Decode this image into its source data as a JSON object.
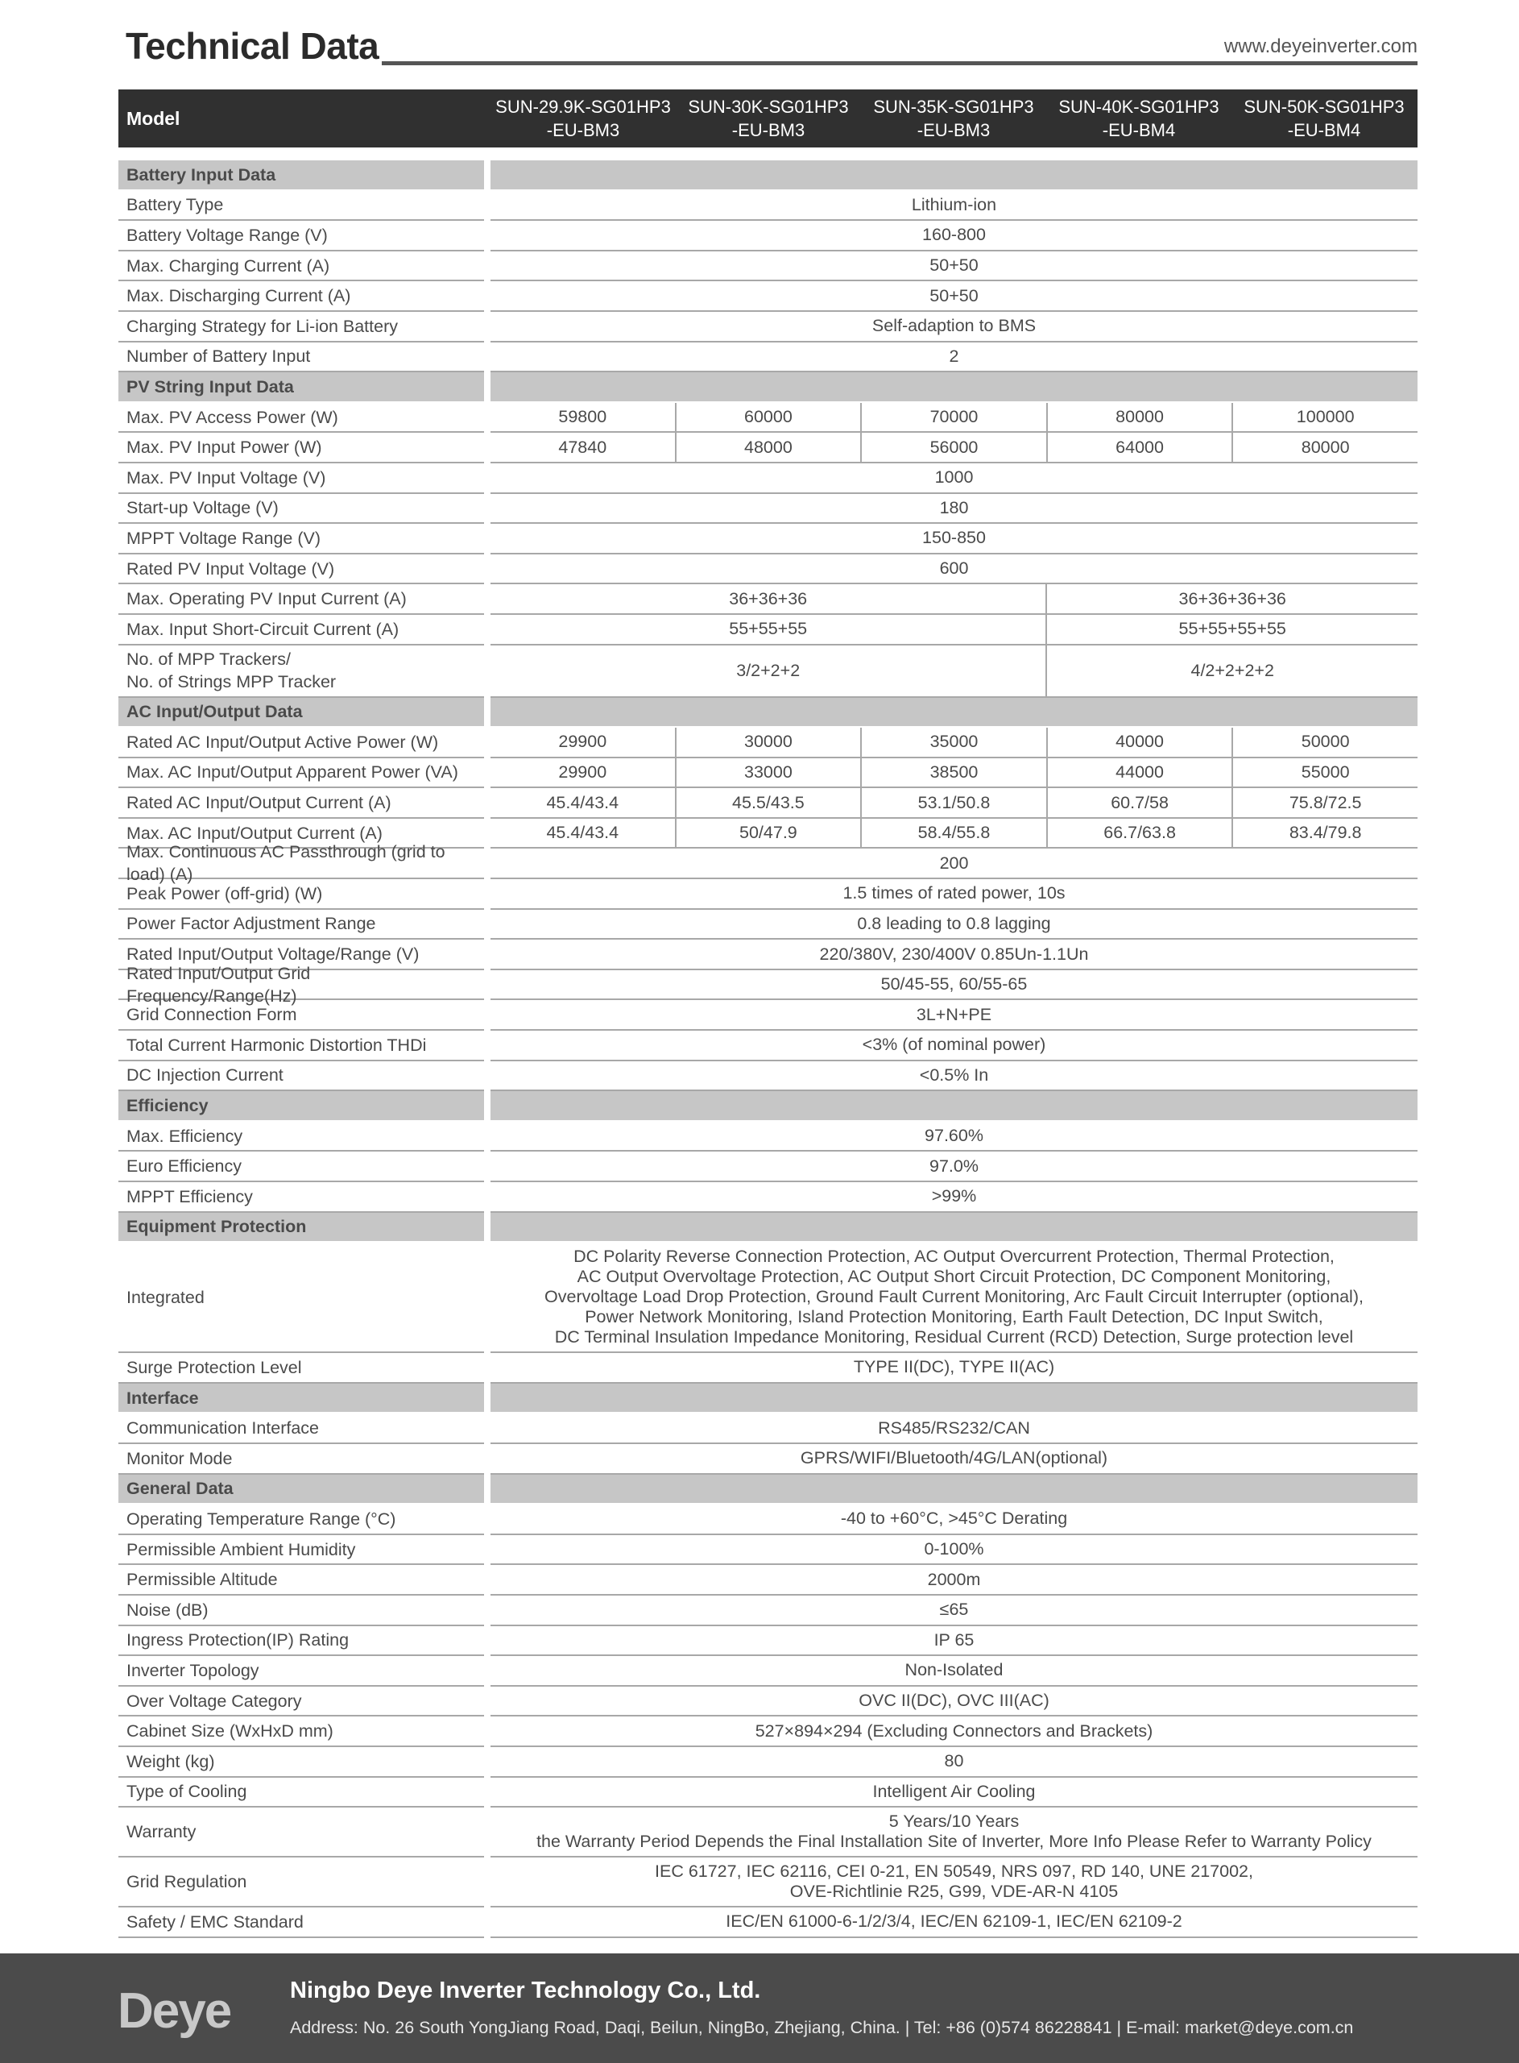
{
  "header": {
    "title": "Technical Data",
    "website": "www.deyeinverter.com"
  },
  "model": {
    "label": "Model",
    "names": [
      "SUN-29.9K-SG01HP3\n-EU-BM3",
      "SUN-30K-SG01HP3\n-EU-BM3",
      "SUN-35K-SG01HP3\n-EU-BM3",
      "SUN-40K-SG01HP3\n-EU-BM4",
      "SUN-50K-SG01HP3\n-EU-BM4"
    ]
  },
  "rows": [
    {
      "section": "Battery Input Data"
    },
    {
      "label": "Battery Type",
      "span": "Lithium-ion"
    },
    {
      "label": "Battery Voltage Range (V)",
      "span": "160-800"
    },
    {
      "label": "Max. Charging Current (A)",
      "span": "50+50"
    },
    {
      "label": "Max. Discharging Current (A)",
      "span": "50+50"
    },
    {
      "label": "Charging Strategy for Li-ion Battery",
      "span": "Self-adaption to BMS"
    },
    {
      "label": "Number of Battery Input",
      "span": "2"
    },
    {
      "section": "PV String Input Data"
    },
    {
      "label": "Max. PV Access Power (W)",
      "five": [
        "59800",
        "60000",
        "70000",
        "80000",
        "100000"
      ]
    },
    {
      "label": "Max. PV Input Power (W)",
      "five": [
        "47840",
        "48000",
        "56000",
        "64000",
        "80000"
      ]
    },
    {
      "label": "Max. PV Input Voltage (V)",
      "span": "1000"
    },
    {
      "label": "Start-up Voltage (V)",
      "span": "180"
    },
    {
      "label": "MPPT  Voltage Range (V)",
      "span": "150-850"
    },
    {
      "label": "Rated PV Input Voltage (V)",
      "span": "600"
    },
    {
      "label": "Max. Operating PV Input Current (A)",
      "split": [
        "36+36+36",
        "36+36+36+36"
      ]
    },
    {
      "label": "Max. Input Short-Circuit Current (A)",
      "split": [
        "55+55+55",
        "55+55+55+55"
      ]
    },
    {
      "label": "No. of MPP Trackers/\nNo. of Strings MPP Tracker",
      "split": [
        "3/2+2+2",
        "4/2+2+2+2"
      ]
    },
    {
      "section": "AC Input/Output Data"
    },
    {
      "label": "Rated AC Input/Output Active Power (W)",
      "five": [
        "29900",
        "30000",
        "35000",
        "40000",
        "50000"
      ]
    },
    {
      "label": "Max. AC Input/Output Apparent Power (VA)",
      "five": [
        "29900",
        "33000",
        "38500",
        "44000",
        "55000"
      ]
    },
    {
      "label": "Rated AC Input/Output Current (A)",
      "five": [
        "45.4/43.4",
        "45.5/43.5",
        "53.1/50.8",
        "60.7/58",
        "75.8/72.5"
      ]
    },
    {
      "label": "Max. AC Input/Output Current (A)",
      "five": [
        "45.4/43.4",
        "50/47.9",
        "58.4/55.8",
        "66.7/63.8",
        "83.4/79.8"
      ]
    },
    {
      "label": "Max. Continuous AC Passthrough (grid to load) (A)",
      "span": "200"
    },
    {
      "label": "Peak Power (off-grid) (W)",
      "span": "1.5 times of rated power, 10s"
    },
    {
      "label": "Power Factor Adjustment Range",
      "span": "0.8 leading to 0.8 lagging"
    },
    {
      "label": "Rated Input/Output Voltage/Range (V)",
      "span": "220/380V,  230/400V  0.85Un-1.1Un"
    },
    {
      "label": "Rated Input/Output Grid Frequency/Range(Hz)",
      "span": "50/45-55,  60/55-65"
    },
    {
      "label": "Grid Connection Form",
      "span": "3L+N+PE"
    },
    {
      "label": "Total Current Harmonic Distortion THDi",
      "span": "<3% (of nominal power)"
    },
    {
      "label": "DC Injection Current",
      "span": "<0.5% In"
    },
    {
      "section": "Efficiency"
    },
    {
      "label": "Max. Efficiency",
      "span": "97.60%"
    },
    {
      "label": "Euro Efficiency",
      "span": "97.0%"
    },
    {
      "label": "MPPT Efficiency",
      "span": ">99%"
    },
    {
      "section": "Equipment Protection"
    },
    {
      "label": "Integrated",
      "span": "DC Polarity Reverse Connection Protection, AC Output Overcurrent Protection, Thermal Protection,\nAC Output Overvoltage Protection, AC Output Short Circuit Protection, DC Component Monitoring,\nOvervoltage Load Drop Protection, Ground Fault Current Monitoring, Arc Fault Circuit Interrupter (optional),\nPower Network Monitoring, Island Protection Monitoring, Earth Fault Detection, DC Input Switch,\nDC Terminal Insulation Impedance Monitoring, Residual Current (RCD) Detection, Surge protection level"
    },
    {
      "label": "Surge Protection Level",
      "span": "TYPE II(DC), TYPE II(AC)"
    },
    {
      "section": "Interface"
    },
    {
      "label": "Communication Interface",
      "span": "RS485/RS232/CAN"
    },
    {
      "label": "Monitor Mode",
      "span": "GPRS/WIFI/Bluetooth/4G/LAN(optional)"
    },
    {
      "section": "General Data"
    },
    {
      "label": "Operating Temperature Range (°C)",
      "span": "-40 to +60°C, >45°C Derating"
    },
    {
      "label": "Permissible Ambient Humidity",
      "span": "0-100%"
    },
    {
      "label": "Permissible Altitude",
      "span": "2000m"
    },
    {
      "label": "Noise (dB)",
      "span": "≤65"
    },
    {
      "label": "Ingress Protection(IP) Rating",
      "span": "IP 65"
    },
    {
      "label": "Inverter Topology",
      "span": "Non-Isolated"
    },
    {
      "label": "Over Voltage Category",
      "span": "OVC II(DC), OVC III(AC)"
    },
    {
      "label": "Cabinet Size (WxHxD mm)",
      "span": "527×894×294 (Excluding Connectors and Brackets)"
    },
    {
      "label": "Weight (kg)",
      "span": "80"
    },
    {
      "label": "Type of Cooling",
      "span": "Intelligent Air Cooling"
    },
    {
      "label": "Warranty",
      "span": "5 Years/10 Years\nthe Warranty Period Depends the Final Installation Site of Inverter, More Info Please Refer to Warranty Policy"
    },
    {
      "label": "Grid Regulation",
      "span": "IEC 61727, IEC 62116, CEI 0-21, EN 50549, NRS 097, RD 140, UNE 217002,\nOVE-Richtlinie R25, G99, VDE-AR-N 4105"
    },
    {
      "label": "Safety / EMC Standard",
      "span": "IEC/EN 61000-6-1/2/3/4, IEC/EN 62109-1, IEC/EN 62109-2"
    }
  ],
  "footer": {
    "logo": "Deye",
    "company": "Ningbo Deye Inverter Technology Co., Ltd.",
    "address": "Address: No. 26 South YongJiang Road, Daqi, Beilun, NingBo, Zhejiang, China.  |  Tel: +86 (0)574 86228841  |  E-mail: market@deye.com.cn"
  }
}
